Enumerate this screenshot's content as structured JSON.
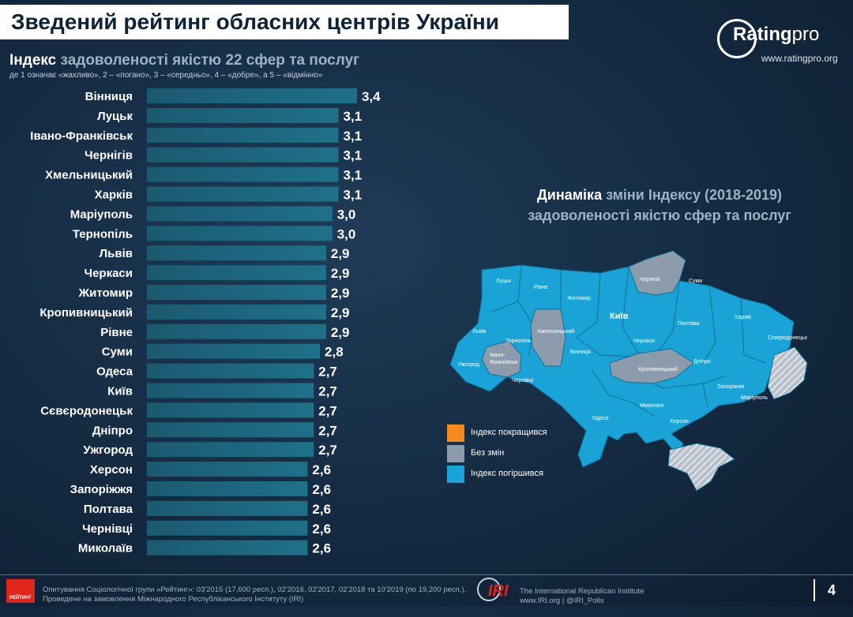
{
  "header": {
    "title": "Зведений рейтинг обласних центрів України"
  },
  "logo": {
    "brand": "Rating",
    "brand_suffix": "pro",
    "url": "www.ratingpro.org"
  },
  "chart_data": [
    {
      "type": "bar",
      "orientation": "horizontal",
      "title_highlight": "Індекс",
      "title": "задоволеності якістю 22 сфер та послуг",
      "subtitle": "де 1 означає «жахливо», 2 – «погано», 3 – «середньо», 4 – «добре», а 5 – «відмінно»",
      "categories": [
        "Вінниця",
        "Луцьк",
        "Івано-Франківськ",
        "Чернігів",
        "Хмельницький",
        "Харків",
        "Маріуполь",
        "Тернопіль",
        "Львів",
        "Черкаси",
        "Житомир",
        "Кропивницький",
        "Рівне",
        "Суми",
        "Одеса",
        "Київ",
        "Сєвєродонецьк",
        "Дніпро",
        "Ужгород",
        "Херсон",
        "Запоріжжя",
        "Полтава",
        "Чернівці",
        "Миколаїв"
      ],
      "values": [
        3.4,
        3.1,
        3.1,
        3.1,
        3.1,
        3.1,
        3.0,
        3.0,
        2.9,
        2.9,
        2.9,
        2.9,
        2.9,
        2.8,
        2.7,
        2.7,
        2.7,
        2.7,
        2.7,
        2.6,
        2.6,
        2.6,
        2.6,
        2.6
      ],
      "value_labels": [
        "3,4",
        "3,1",
        "3,1",
        "3,1",
        "3,1",
        "3,1",
        "3,0",
        "3,0",
        "2,9",
        "2,9",
        "2,9",
        "2,9",
        "2,9",
        "2,8",
        "2,7",
        "2,7",
        "2,7",
        "2,7",
        "2,7",
        "2,6",
        "2,6",
        "2,6",
        "2,6",
        "2,6"
      ],
      "bar_color": "#1e6f86"
    },
    {
      "type": "map",
      "title_highlight": "Динаміка",
      "title_line1_rest": "зміни Індексу (2018-2019)",
      "title_line2": "задоволеності якістю сфер та послуг",
      "city_labels": {
        "Lutsk": "Луцьк",
        "Rivne": "Рівне",
        "Chernihiv": "Чернігів",
        "Sumy": "Суми",
        "Zhytomyr": "Житомир",
        "Kyiv": "Київ",
        "Kharkiv": "Харків",
        "Lviv": "Львів",
        "Ternopil": "Тернопіль",
        "Khmelnytskyi": "Хмельницький",
        "Poltava": "Полтава",
        "Sievierodonetsk": "Сєвєродонецьк",
        "Ivano1": "Івано-",
        "Ivano2": "Франківськ",
        "Uzhhorod": "Ужгород",
        "Vinnytsia": "Вінниця",
        "Cherkasy": "Черкаси",
        "Kropyvnytskyi": "Кропивницький",
        "Dnipro": "Дніпро",
        "Chernivtsi": "Чернівці",
        "Zaporizhzhia": "Запоріжжя",
        "Mykolaiv": "Миколаїв",
        "Mariupol": "Маріуполь",
        "Odesa": "Одеса",
        "Kherson": "Херсон"
      },
      "status": {
        "Chernihiv": "no_change",
        "Khmelnytskyi": "no_change",
        "Ivano-Frankivsk": "no_change",
        "Kropyvnytskyi": "no_change",
        "others": "worsened"
      },
      "legend": [
        {
          "label": "Індекс покращився",
          "color": "#f28a1c"
        },
        {
          "label": "Без змін",
          "color": "#8d9cad"
        },
        {
          "label": "Індекс погіршився",
          "color": "#1aa3d6"
        }
      ],
      "colors": {
        "worsened": "#1aa3d6",
        "no_change": "#8d9cad",
        "occupied": "#b9c2cc"
      }
    }
  ],
  "footer": {
    "line1": "Опитування Соціологічної групи «Рейтинг»: 03'2015 (17,600 респ.), 02'2016, 02'2017, 02'2018 та 10'2019 (по 19,200 респ.).",
    "line2": "Проведене на замовлення Міжнародного Республіканського Інституту (IRI)",
    "logo_label": "РЕЙТИНГ",
    "iri_mark": "IRI",
    "iri_line1": "The International Republican Institute",
    "iri_line2": "www.IRI.org | @IRI_Polls",
    "page_number": "4"
  }
}
